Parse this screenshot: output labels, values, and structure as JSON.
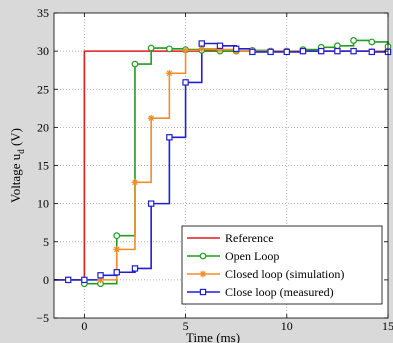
{
  "chart_data": {
    "type": "line",
    "title": "",
    "xlabel": "Time (ms)",
    "ylabel_prefix": "Voltage u",
    "ylabel_subscript": "d",
    "ylabel_suffix": " (V)",
    "xlim": [
      -1.5,
      15
    ],
    "ylim": [
      -5,
      35
    ],
    "xticks": [
      0,
      5,
      10,
      15
    ],
    "yticks": [
      -5,
      0,
      5,
      10,
      15,
      20,
      25,
      30,
      35
    ],
    "grid": true,
    "legend_position": "bottom-right",
    "series": [
      {
        "name": "Reference",
        "color": "#e31a1c",
        "marker": "none",
        "step": true,
        "x": [
          -1.5,
          0,
          0,
          15
        ],
        "y": [
          0,
          0,
          30,
          30
        ]
      },
      {
        "name": "Open Loop",
        "color": "#1e9e1e",
        "marker": "circle",
        "step": true,
        "x": [
          -1.5,
          -0.8,
          0,
          0.8,
          1.6,
          2.5,
          3.3,
          4.2,
          5.0,
          5.8,
          6.7,
          7.5,
          8.3,
          9.2,
          10.0,
          10.8,
          11.7,
          12.5,
          13.3,
          14.2,
          15.0
        ],
        "y": [
          0,
          0,
          -0.5,
          -0.5,
          5.8,
          28.3,
          30.4,
          30.3,
          30.2,
          30.1,
          30.0,
          30.0,
          30.1,
          30.0,
          30.0,
          30.2,
          30.5,
          30.7,
          31.4,
          31.2,
          30.6
        ]
      },
      {
        "name": "Closed loop (simulation)",
        "color": "#f28c28",
        "marker": "star",
        "step": true,
        "x": [
          -1.5,
          -0.8,
          0,
          0.8,
          1.6,
          2.5,
          3.3,
          4.2,
          5.0,
          5.8,
          6.7,
          7.5,
          8.3,
          9.2,
          10.0,
          10.8,
          11.7,
          12.5,
          13.3,
          14.2,
          15.0
        ],
        "y": [
          0,
          0,
          0,
          0,
          4.0,
          12.8,
          21.2,
          27.1,
          30.1,
          30.3,
          30.2,
          30.0,
          30.0,
          30.0,
          30.0,
          30.0,
          30.0,
          30.0,
          30.0,
          30.0,
          30.0
        ]
      },
      {
        "name": "Close loop (measured)",
        "color": "#1f1fd6",
        "marker": "square",
        "step": true,
        "x": [
          -1.5,
          -0.8,
          0,
          0.8,
          1.6,
          2.5,
          3.3,
          4.2,
          5.0,
          5.8,
          6.7,
          7.5,
          8.3,
          9.2,
          10.0,
          10.8,
          11.7,
          12.5,
          13.3,
          14.2,
          15.0
        ],
        "y": [
          0,
          0,
          0,
          0.6,
          1.0,
          1.5,
          10.0,
          18.7,
          25.9,
          31.0,
          30.7,
          30.3,
          29.9,
          29.9,
          29.9,
          30.0,
          30.0,
          30.0,
          30.0,
          29.9,
          29.9
        ]
      }
    ]
  }
}
